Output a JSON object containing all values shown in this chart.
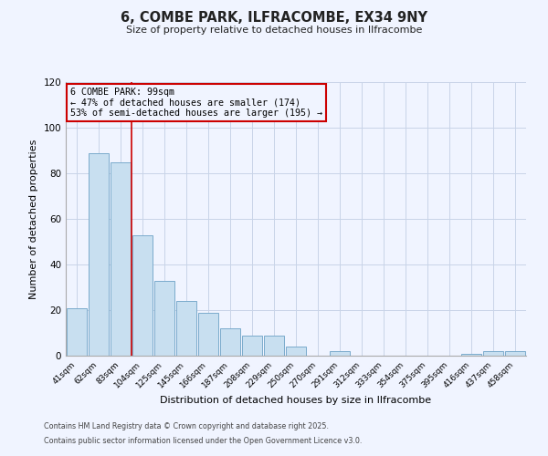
{
  "title": "6, COMBE PARK, ILFRACOMBE, EX34 9NY",
  "subtitle": "Size of property relative to detached houses in Ilfracombe",
  "xlabel": "Distribution of detached houses by size in Ilfracombe",
  "ylabel": "Number of detached properties",
  "categories": [
    "41sqm",
    "62sqm",
    "83sqm",
    "104sqm",
    "125sqm",
    "145sqm",
    "166sqm",
    "187sqm",
    "208sqm",
    "229sqm",
    "250sqm",
    "270sqm",
    "291sqm",
    "312sqm",
    "333sqm",
    "354sqm",
    "375sqm",
    "395sqm",
    "416sqm",
    "437sqm",
    "458sqm"
  ],
  "values": [
    21,
    89,
    85,
    53,
    33,
    24,
    19,
    12,
    9,
    9,
    4,
    0,
    2,
    0,
    0,
    0,
    0,
    0,
    1,
    2,
    2
  ],
  "bar_color": "#c8dff0",
  "bar_edge_color": "#7aabcc",
  "vline_color": "#cc0000",
  "annotation_title": "6 COMBE PARK: 99sqm",
  "annotation_line2": "← 47% of detached houses are smaller (174)",
  "annotation_line3": "53% of semi-detached houses are larger (195) →",
  "annotation_box_edge": "#cc0000",
  "ylim": [
    0,
    120
  ],
  "yticks": [
    0,
    20,
    40,
    60,
    80,
    100,
    120
  ],
  "background_color": "#f0f4ff",
  "grid_color": "#c8d4e8",
  "footer1": "Contains HM Land Registry data © Crown copyright and database right 2025.",
  "footer2": "Contains public sector information licensed under the Open Government Licence v3.0."
}
